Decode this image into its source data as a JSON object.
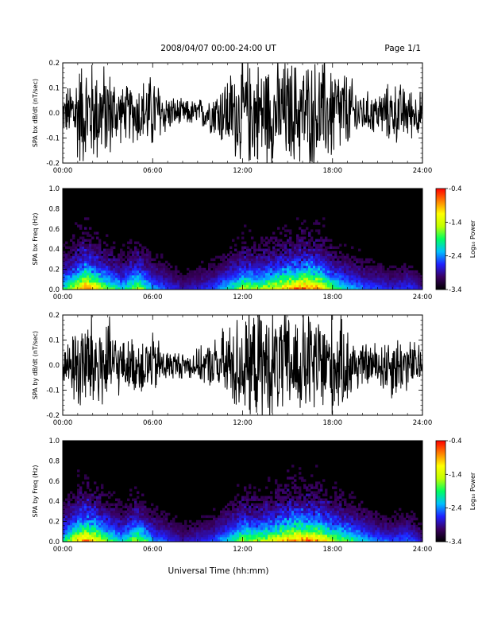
{
  "header": {
    "title": "2008/04/07  00:00-24:00 UT",
    "page": "Page 1/1"
  },
  "footer": {
    "xlabel": "Universal Time (hh:mm)"
  },
  "colors": {
    "trace": "#000000",
    "spectrogram_background": "#000000",
    "colorbar": [
      "#000000",
      "#3a0060",
      "#2020ff",
      "#00c0ff",
      "#00ff60",
      "#c0ff00",
      "#ffff00",
      "#ff8000",
      "#ff0000"
    ]
  },
  "chart_data": [
    {
      "type": "line",
      "ylabel": "SPA bx dB/dt (nT/sec)",
      "xlim": [
        "00:00",
        "24:00"
      ],
      "ylim": [
        -0.2,
        0.2
      ],
      "xticks": [
        "00:00",
        "06:00",
        "12:00",
        "18:00",
        "24:00"
      ],
      "yticks": [
        "-0.2",
        "-0.1",
        "0.0",
        "0.1",
        "0.2"
      ],
      "ytick_values": [
        -0.2,
        -0.1,
        0.0,
        0.1,
        0.2
      ],
      "envelope": {
        "x_hours": [
          0,
          0.5,
          1,
          1.5,
          2,
          3,
          4,
          5,
          6,
          7,
          8,
          9,
          10,
          11,
          12,
          13,
          14,
          15,
          16,
          17,
          18,
          19,
          20,
          21,
          22,
          23,
          24
        ],
        "amplitude": [
          0.07,
          0.12,
          0.2,
          0.2,
          0.2,
          0.18,
          0.1,
          0.12,
          0.15,
          0.07,
          0.05,
          0.05,
          0.08,
          0.15,
          0.2,
          0.2,
          0.2,
          0.2,
          0.2,
          0.2,
          0.2,
          0.15,
          0.08,
          0.08,
          0.12,
          0.1,
          0.08
        ]
      }
    },
    {
      "type": "heatmap",
      "ylabel": "SPA bx Freq (Hz)",
      "xlim": [
        "00:00",
        "24:00"
      ],
      "ylim": [
        0.0,
        1.0
      ],
      "xticks": [
        "00:00",
        "06:00",
        "12:00",
        "18:00",
        "24:00"
      ],
      "yticks": [
        "0.0",
        "0.2",
        "0.4",
        "0.6",
        "0.8",
        "1.0"
      ],
      "ytick_values": [
        0.0,
        0.2,
        0.4,
        0.6,
        0.8,
        1.0
      ],
      "colorbar": {
        "label": "Log₁₀ Power",
        "ticks": [
          "-0.4",
          "-1.4",
          "-2.4",
          "-3.4"
        ],
        "tick_values": [
          -0.4,
          -1.4,
          -2.4,
          -3.4
        ],
        "range": [
          -3.4,
          -0.4
        ]
      },
      "activity": {
        "x_hours": [
          0,
          1,
          1.5,
          2,
          3,
          4,
          5,
          6,
          8,
          10,
          11.5,
          12,
          13,
          14,
          15,
          16,
          17,
          18,
          19,
          20,
          21,
          22,
          23,
          24
        ],
        "intensity": [
          0.5,
          0.8,
          1.0,
          0.9,
          0.6,
          0.45,
          0.7,
          0.4,
          0.2,
          0.3,
          0.55,
          0.7,
          0.65,
          0.75,
          0.9,
          1.0,
          0.95,
          0.6,
          0.45,
          0.35,
          0.3,
          0.25,
          0.3,
          0.2
        ]
      }
    },
    {
      "type": "line",
      "ylabel": "SPA by dB/dt (nT/sec)",
      "xlim": [
        "00:00",
        "24:00"
      ],
      "ylim": [
        -0.2,
        0.2
      ],
      "xticks": [
        "00:00",
        "06:00",
        "12:00",
        "18:00",
        "24:00"
      ],
      "yticks": [
        "-0.2",
        "-0.1",
        "0.0",
        "0.1",
        "0.2"
      ],
      "ytick_values": [
        -0.2,
        -0.1,
        0.0,
        0.1,
        0.2
      ],
      "envelope": {
        "x_hours": [
          0,
          0.5,
          1,
          1.5,
          2,
          3,
          4,
          5,
          6,
          7,
          8,
          9,
          10,
          11,
          12,
          13,
          14,
          15,
          16,
          17,
          18,
          19,
          20,
          21,
          22,
          23,
          24
        ],
        "amplitude": [
          0.06,
          0.1,
          0.2,
          0.2,
          0.2,
          0.18,
          0.09,
          0.11,
          0.12,
          0.06,
          0.05,
          0.06,
          0.09,
          0.16,
          0.2,
          0.2,
          0.2,
          0.2,
          0.2,
          0.2,
          0.2,
          0.15,
          0.08,
          0.09,
          0.13,
          0.1,
          0.08
        ]
      }
    },
    {
      "type": "heatmap",
      "ylabel": "SPA by Freq (Hz)",
      "xlim": [
        "00:00",
        "24:00"
      ],
      "ylim": [
        0.0,
        1.0
      ],
      "xticks": [
        "00:00",
        "06:00",
        "12:00",
        "18:00",
        "24:00"
      ],
      "yticks": [
        "0.0",
        "0.2",
        "0.4",
        "0.6",
        "0.8",
        "1.0"
      ],
      "ytick_values": [
        0.0,
        0.2,
        0.4,
        0.6,
        0.8,
        1.0
      ],
      "colorbar": {
        "label": "Log₁₀ Power",
        "ticks": [
          "-0.4",
          "-1.4",
          "-2.4",
          "-3.4"
        ],
        "tick_values": [
          -0.4,
          -1.4,
          -2.4,
          -3.4
        ],
        "range": [
          -3.4,
          -0.4
        ]
      },
      "activity": {
        "x_hours": [
          0,
          1,
          1.5,
          2,
          3,
          4,
          5,
          6,
          8,
          10,
          11.5,
          12,
          13,
          14,
          15,
          16,
          17,
          18,
          19,
          20,
          21,
          22,
          23,
          24
        ],
        "intensity": [
          0.5,
          0.85,
          1.0,
          0.9,
          0.6,
          0.45,
          0.7,
          0.4,
          0.2,
          0.3,
          0.55,
          0.7,
          0.65,
          0.75,
          0.95,
          1.0,
          0.95,
          0.7,
          0.6,
          0.45,
          0.35,
          0.3,
          0.35,
          0.2
        ]
      }
    }
  ]
}
